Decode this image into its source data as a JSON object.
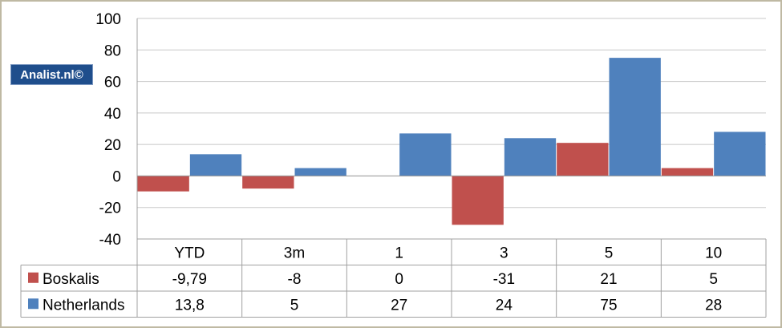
{
  "watermark": "Analist.nl©",
  "chart_data": {
    "type": "bar",
    "categories": [
      "YTD",
      "3m",
      "1",
      "3",
      "5",
      "10"
    ],
    "series": [
      {
        "name": "Boskalis",
        "values": [
          -9.79,
          -8,
          0,
          -31,
          21,
          5
        ],
        "labels": [
          "-9,79",
          "-8",
          "0",
          "-31",
          "21",
          "5"
        ],
        "color": "#c0504d"
      },
      {
        "name": "Netherlands",
        "values": [
          13.8,
          5,
          27,
          24,
          75,
          28
        ],
        "labels": [
          "13,8",
          "5",
          "27",
          "24",
          "75",
          "28"
        ],
        "color": "#4f81bd"
      }
    ],
    "ylim": [
      -40,
      100
    ],
    "yticks": [
      100,
      80,
      60,
      40,
      20,
      0,
      -20,
      -40
    ],
    "grid": true,
    "data_table": true,
    "title": "",
    "xlabel": "",
    "ylabel": ""
  }
}
